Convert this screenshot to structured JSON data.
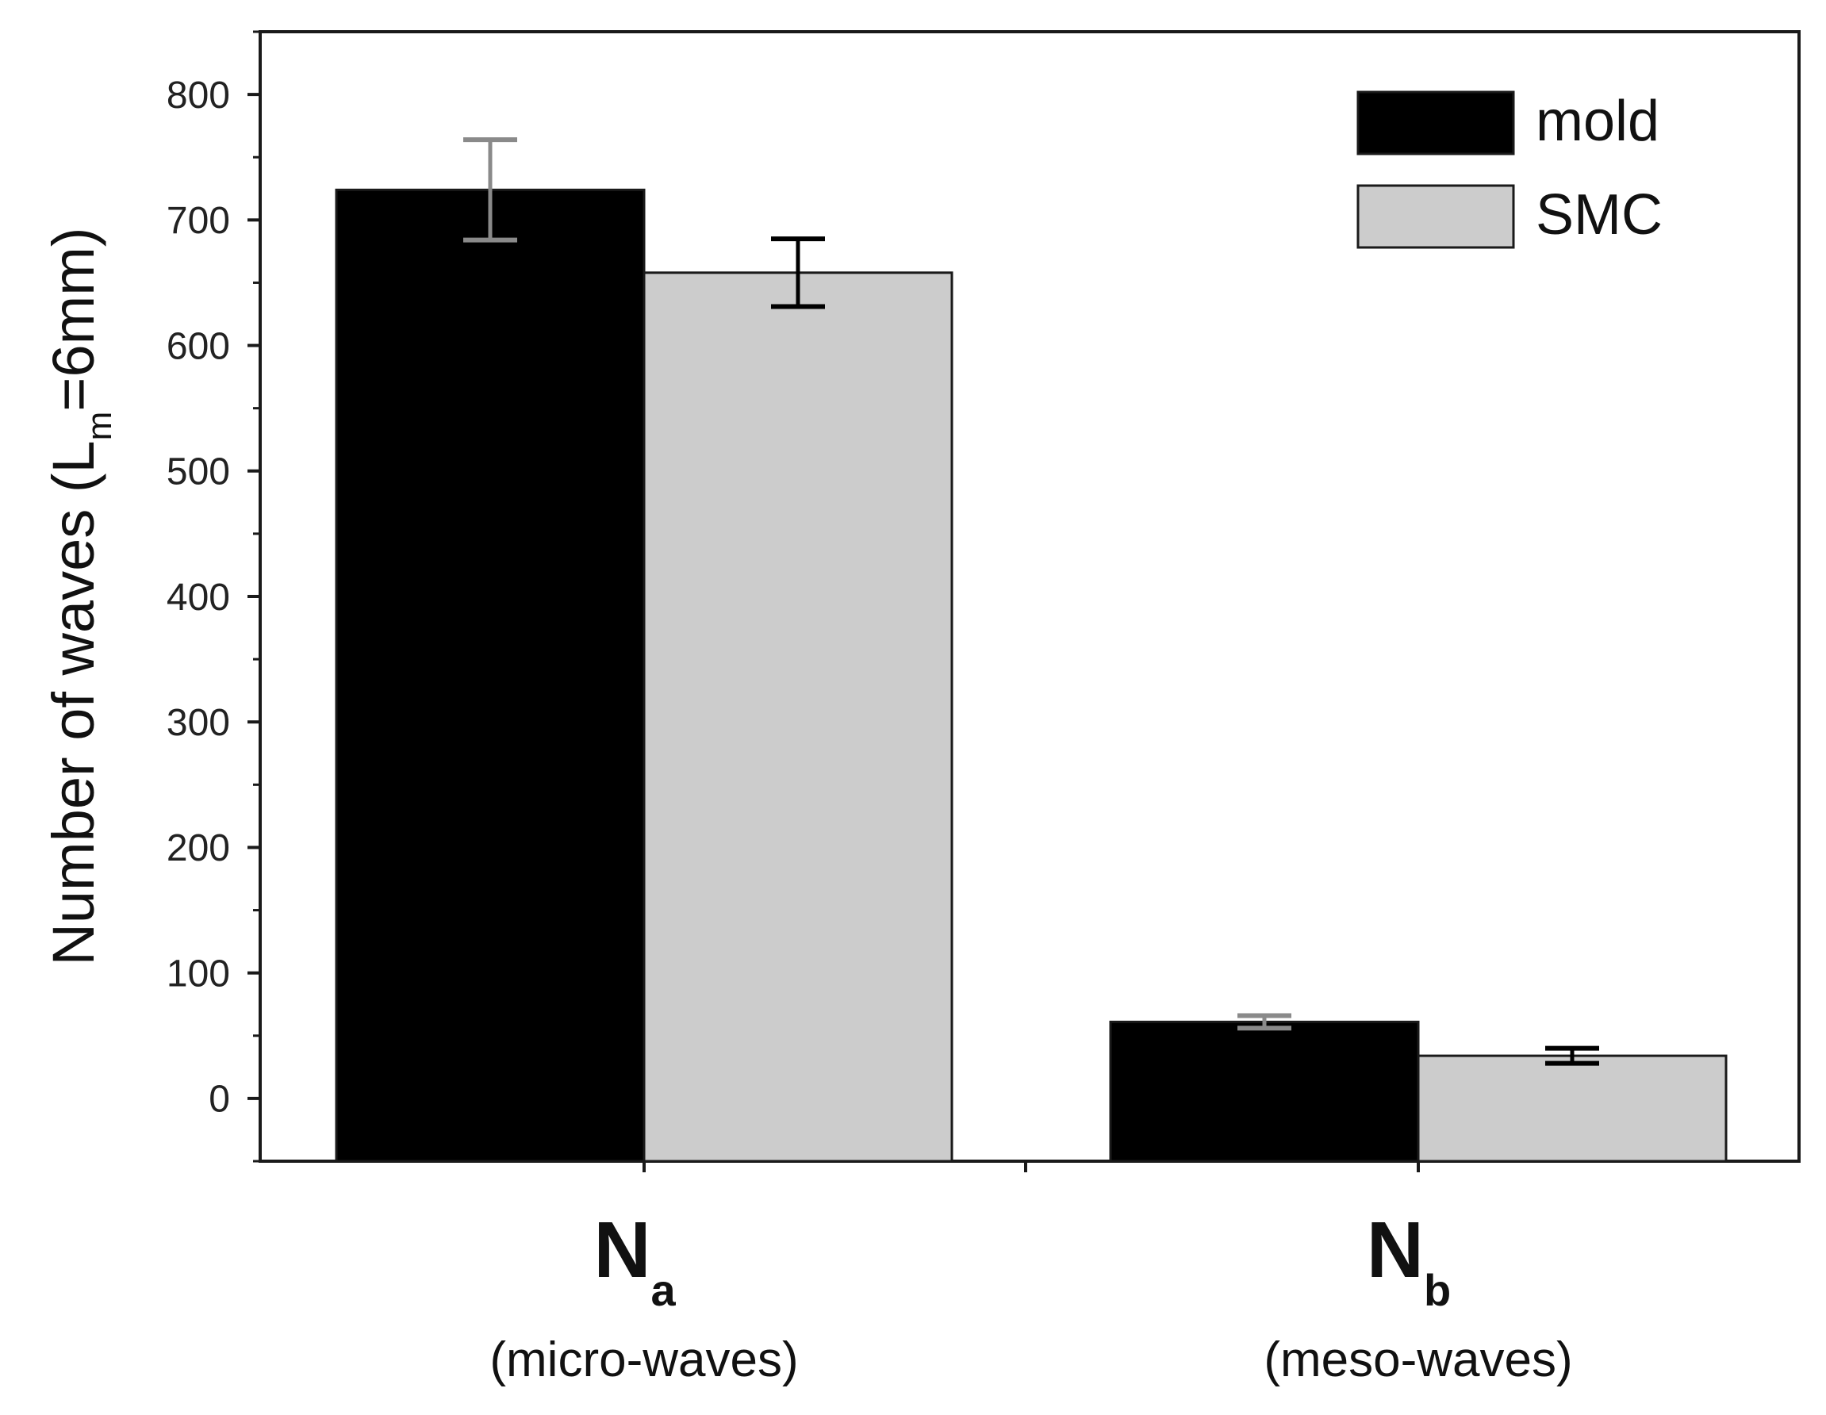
{
  "chart_data": {
    "type": "bar",
    "title": "",
    "ylabel": {
      "main": "Number of waves (L",
      "sub": "m",
      "tail": "=6mm)"
    },
    "xlabel": "",
    "ylim": [
      -50,
      850
    ],
    "yticks": [
      0,
      100,
      200,
      300,
      400,
      500,
      600,
      700,
      800
    ],
    "categories": [
      {
        "main": "N",
        "sub": "a",
        "desc": "(micro-waves)"
      },
      {
        "main": "N",
        "sub": "b",
        "desc": "(meso-waves)"
      }
    ],
    "series": [
      {
        "name": "mold",
        "color": "#000000",
        "error_color": "#8a8a8a",
        "values": [
          724,
          61
        ],
        "errors": [
          40,
          5
        ]
      },
      {
        "name": "SMC",
        "color": "#cccccc",
        "error_color": "#000000",
        "values": [
          658,
          34
        ],
        "errors": [
          27,
          6
        ]
      }
    ],
    "legend": {
      "position": "top-right"
    },
    "grid": false
  }
}
